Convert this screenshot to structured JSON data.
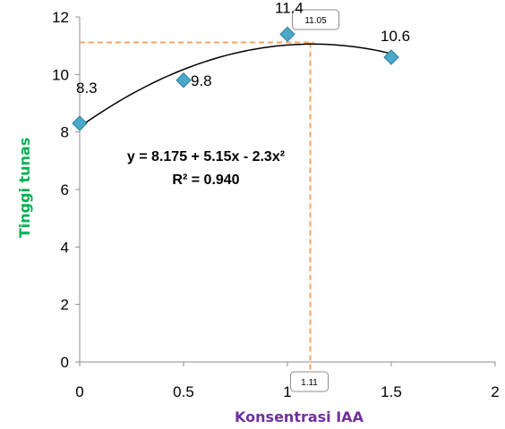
{
  "chart_data": {
    "type": "scatter",
    "x": [
      0,
      0.5,
      1,
      1.5
    ],
    "y": [
      8.3,
      9.8,
      11.4,
      10.6
    ],
    "data_labels": [
      "8.3",
      "9.8",
      "11.4",
      "10.6"
    ],
    "xlabel": "Konsentrasi IAA",
    "ylabel": "Tinggi tunas",
    "xlim": [
      0,
      2
    ],
    "ylim": [
      0,
      12
    ],
    "xticks": [
      0,
      0.5,
      1,
      1.5,
      2
    ],
    "xtick_labels": [
      "0",
      "0.5",
      "1",
      "1.5",
      "2"
    ],
    "yticks": [
      0,
      2,
      4,
      6,
      8,
      10,
      12
    ],
    "ytick_labels": [
      "0",
      "2",
      "4",
      "6",
      "8",
      "10",
      "12"
    ],
    "trendline": {
      "type": "polynomial",
      "a": 8.175,
      "b": 5.15,
      "c": -2.3
    },
    "equation_text": "y = 8.175 + 5.15x - 2.3x²",
    "r2_text": "R² = 0.940",
    "optimum": {
      "x": 1.11,
      "y": 11.05,
      "x_label": "1.11",
      "y_label": "11.05"
    },
    "grid": false,
    "marker": "diamond",
    "colors": {
      "marker": "#4aa8c8",
      "marker_edge": "#2c7fa0",
      "trendline": "#000000",
      "guide": "#f4a460",
      "xlabel": "#7030a0",
      "ylabel": "#00b050"
    }
  }
}
